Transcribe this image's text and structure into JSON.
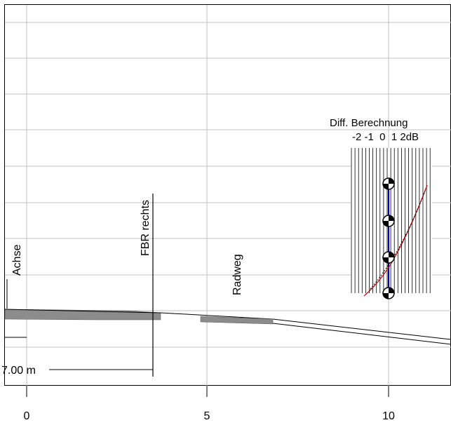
{
  "labels": {
    "achse": "Achse",
    "fbr_rechts": "FBR rechts",
    "radweg": "Radweg",
    "diff_title": "Diff. Berechnung",
    "diff_scale": "-2 -1  0  1 2dB",
    "dimension": "7.00 m"
  },
  "x_axis": {
    "tick_labels": [
      "0",
      "5",
      "10"
    ]
  },
  "colors": {
    "grid": "#c0c0c0",
    "surface_fill": "#8c8c8c",
    "center_line": "#0000cc",
    "curve_red": "#cc0000",
    "curve_black": "#000000"
  }
}
